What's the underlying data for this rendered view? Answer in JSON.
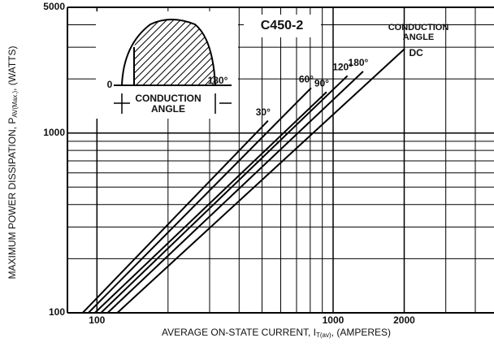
{
  "chart_data": {
    "type": "line",
    "title": "C450-2",
    "legend_title": [
      "CONDUCTION",
      "ANGLE"
    ],
    "x_label": [
      "AVERAGE ON-STATE CURRENT, I",
      "T(av)",
      ", (AMPERES)"
    ],
    "y_label": [
      "MAXIMUM POWER DISSIPATION, P",
      "AV(Max.)",
      ", (WATTS)"
    ],
    "inset": {
      "start_label": "0",
      "end_label": "180°",
      "angle_label": [
        "CONDUCTION",
        "ANGLE"
      ]
    },
    "xlog": true,
    "ylog": true,
    "grid": true,
    "xlim": [
      75,
      4800
    ],
    "ylim": [
      100,
      5000
    ],
    "xticks": [
      100,
      1000,
      2000
    ],
    "yticks": [
      100,
      1000,
      5000
    ],
    "x_minor_ticks": [
      200,
      300,
      400,
      500,
      600,
      700,
      800,
      900,
      3000,
      4000
    ],
    "y_minor_ticks": [
      200,
      300,
      400,
      500,
      600,
      700,
      800,
      900,
      2000,
      3000,
      4000
    ],
    "series": [
      {
        "name": "30°",
        "color": "#000000",
        "x": [
          87,
          530
        ],
        "values": [
          100,
          1170
        ]
      },
      {
        "name": "60°",
        "color": "#000000",
        "x": [
          92,
          807
        ],
        "values": [
          100,
          1780
        ]
      },
      {
        "name": "90°",
        "color": "#000000",
        "x": [
          98,
          938
        ],
        "values": [
          100,
          1690
        ]
      },
      {
        "name": "120°",
        "color": "#000000",
        "x": [
          104,
          1150
        ],
        "values": [
          100,
          2080
        ]
      },
      {
        "name": "180°",
        "color": "#000000",
        "x": [
          111,
          1340
        ],
        "values": [
          100,
          2200
        ]
      },
      {
        "name": "DC",
        "color": "#000000",
        "x": [
          122,
          2010
        ],
        "values": [
          100,
          2940
        ]
      }
    ]
  }
}
